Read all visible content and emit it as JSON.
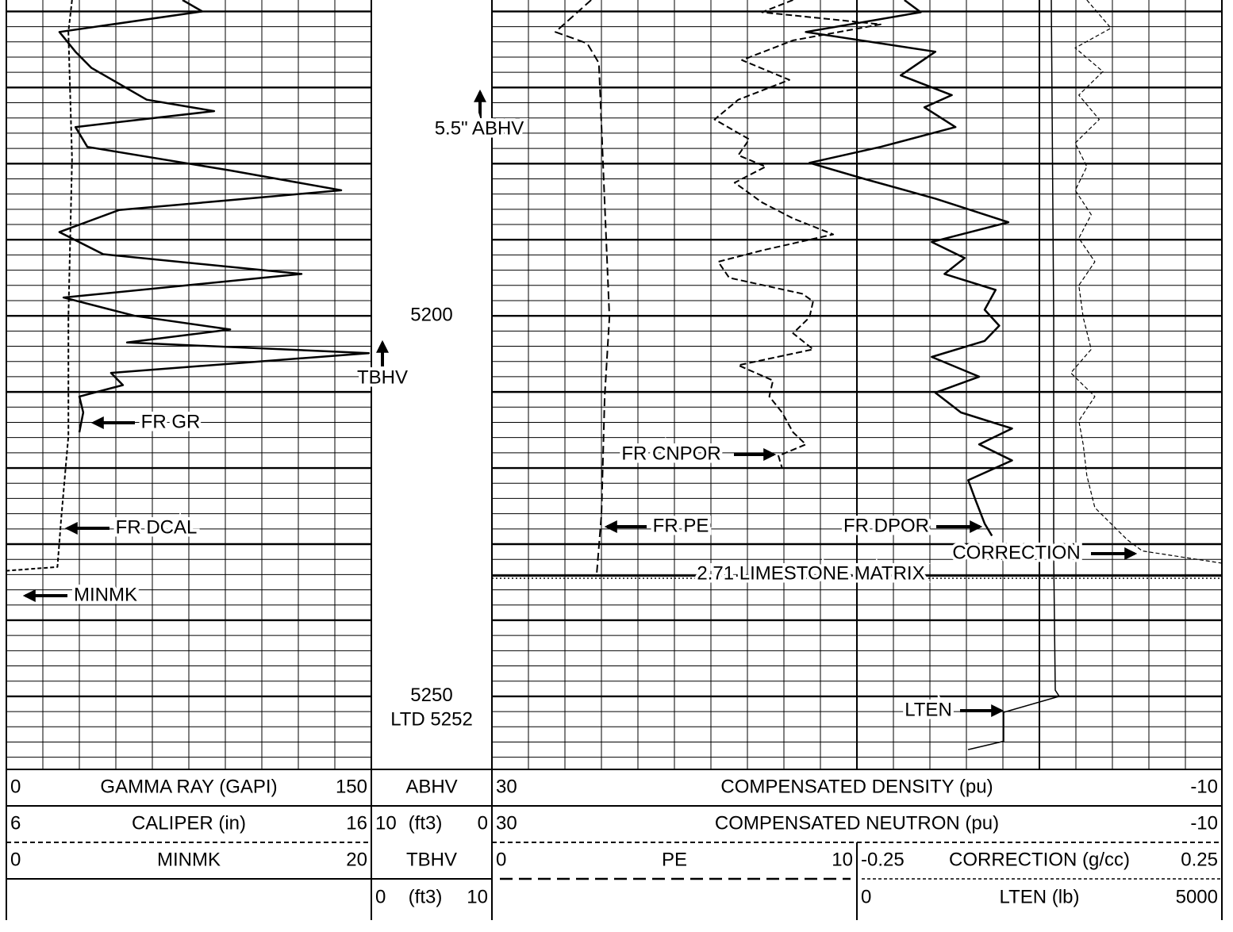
{
  "chart_data": {
    "type": "line",
    "ylim": [
      5158.5,
      5259.6
    ],
    "yticks": [
      5160,
      5170,
      5180,
      5190,
      5200,
      5210,
      5220,
      5230,
      5240,
      5250
    ],
    "depth_labels": [
      5200,
      5250
    ],
    "td_label": "LTD 5252",
    "annotations": [
      "5.5\" ABHV",
      "TBHV",
      "2.71 LIMESTONE MATRIX"
    ],
    "series": [
      {
        "name": "GAMMA RAY (GAPI)",
        "label": "FR GR",
        "xlim": [
          0,
          150
        ],
        "depth": [
          5158.5,
          5160.0,
          5162.7,
          5165.3,
          5167.4,
          5171.6,
          5173.1,
          5175.2,
          5177.8,
          5180.9,
          5183.5,
          5186.1,
          5189.0,
          5191.9,
          5194.5,
          5197.6,
          5200.0,
          5201.8,
          5203.5,
          5204.9,
          5207.5,
          5209.1,
          5210.6,
          5212.7,
          5215.3
        ],
        "values": [
          72.4,
          80.5,
          21.8,
          28.4,
          34.9,
          57.7,
          85.4,
          28.4,
          33.3,
          92.0,
          137.6,
          46.3,
          21.8,
          39.8,
          121.3,
          23.5,
          52.8,
          92.0,
          49.6,
          149.0,
          43.0,
          47.9,
          30.0,
          31.6,
          30.0
        ]
      },
      {
        "name": "CALIPER (in)",
        "label": "FR DCAL",
        "xlim": [
          6,
          16
        ],
        "depth": [
          5158.5,
          5162.7,
          5179.4,
          5200.2,
          5215.8,
          5226.8,
          5233.0,
          5233.5
        ],
        "values": [
          7.8,
          7.7,
          7.8,
          7.7,
          7.7,
          7.5,
          7.4,
          6.0
        ]
      },
      {
        "name": "MINMK",
        "label": "MINMK",
        "xlim": [
          0,
          20
        ]
      },
      {
        "name": "ABHV",
        "unit": "(ft3)",
        "xlim": [
          10,
          0
        ]
      },
      {
        "name": "TBHV",
        "unit": "(ft3)",
        "xlim": [
          0,
          10
        ]
      },
      {
        "name": "COMPENSATED DENSITY (pu)",
        "label": "FR DPOR",
        "xlim": [
          30,
          -10
        ],
        "depth": [
          5158.5,
          5160.1,
          5162.7,
          5165.3,
          5168.4,
          5171.0,
          5172.6,
          5175.2,
          5177.8,
          5179.9,
          5182.0,
          5184.6,
          5187.7,
          5190.3,
          5192.4,
          5194.5,
          5196.6,
          5199.2,
          5201.3,
          5203.3,
          5205.4,
          5208.0,
          5210.1,
          5212.7,
          5214.8,
          5216.9,
          5219.0,
          5221.6,
          5224.2,
          5227.3,
          5228.9
        ],
        "values": [
          7.4,
          6.5,
          12.8,
          5.7,
          7.6,
          4.8,
          6.3,
          4.6,
          8.7,
          12.6,
          9.6,
          5.7,
          1.7,
          5.9,
          4.1,
          5.2,
          2.4,
          3.0,
          2.2,
          3.0,
          5.9,
          3.3,
          5.7,
          4.3,
          1.5,
          3.3,
          1.5,
          3.9,
          3.5,
          3.0,
          2.6
        ]
      },
      {
        "name": "COMPENSATED NEUTRON (pu)",
        "label": "FR CNPOR",
        "xlim": [
          30,
          -10
        ],
        "depth": [
          5158.5,
          5160.1,
          5161.7,
          5163.8,
          5166.4,
          5169.0,
          5171.6,
          5174.2,
          5176.8,
          5178.9,
          5180.4,
          5182.5,
          5185.1,
          5187.2,
          5189.3,
          5191.4,
          5192.9,
          5195.0,
          5197.1,
          5198.1,
          5200.2,
          5202.3,
          5204.4,
          5206.5,
          5208.5,
          5210.6,
          5212.7,
          5215.3,
          5216.9,
          5218.4,
          5220.0
        ],
        "values": [
          13.5,
          15.2,
          8.7,
          13.5,
          16.3,
          13.7,
          16.5,
          17.8,
          15.9,
          16.5,
          15.0,
          16.7,
          15.2,
          13.5,
          11.3,
          15.2,
          17.6,
          17.0,
          13.0,
          12.4,
          12.6,
          13.5,
          12.4,
          16.5,
          14.6,
          14.8,
          14.1,
          13.5,
          12.8,
          14.3,
          14.1
        ]
      },
      {
        "name": "PE",
        "label": "FR PE",
        "xlim": [
          0,
          10
        ],
        "depth": [
          5158.5,
          5162.7,
          5164.2,
          5166.8,
          5179.4,
          5200.2,
          5210.6,
          5226.2,
          5234.0
        ],
        "values": [
          2.72,
          1.74,
          2.61,
          2.93,
          3.04,
          3.22,
          3.09,
          3.0,
          2.87
        ]
      },
      {
        "name": "CORRECTION (g/cc)",
        "label": "CORRECTION",
        "xlim": [
          -0.25,
          0.25
        ],
        "depth": [
          5158.5,
          5162.2,
          5164.8,
          5167.9,
          5171.0,
          5174.2,
          5177.3,
          5180.4,
          5183.5,
          5186.7,
          5189.8,
          5192.9,
          5196.0,
          5200.2,
          5204.4,
          5207.5,
          5210.6,
          5213.8,
          5216.9,
          5221.0,
          5225.2,
          5229.4,
          5230.9,
          5232.5
        ],
        "values": [
          0.065,
          0.098,
          0.049,
          0.087,
          0.054,
          0.082,
          0.049,
          0.065,
          0.049,
          0.071,
          0.054,
          0.076,
          0.054,
          0.06,
          0.071,
          0.043,
          0.076,
          0.054,
          0.06,
          0.065,
          0.076,
          0.12,
          0.141,
          0.25
        ]
      },
      {
        "name": "LTEN (lb)",
        "label": "LTEN",
        "xlim": [
          0,
          5000
        ],
        "depth": [
          5158.5,
          5200.2,
          5231.5,
          5249.2,
          5250.0,
          5252.1,
          5255.9,
          5257.0
        ],
        "values": [
          2663,
          2696,
          2696,
          2717,
          2772,
          2011,
          2011,
          1522
        ]
      }
    ]
  }
}
